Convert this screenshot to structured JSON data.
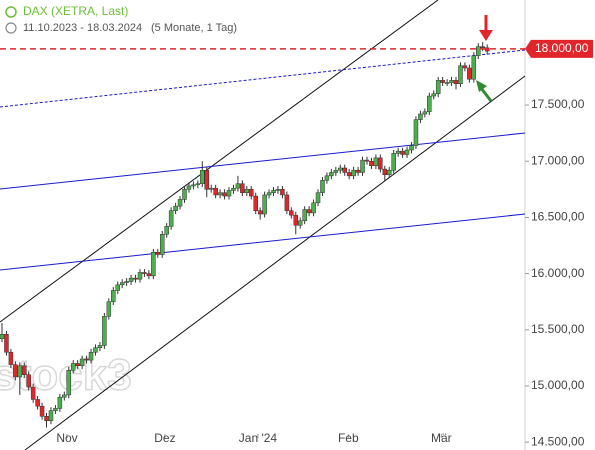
{
  "chart_data": {
    "type": "candlestick",
    "title": "DAX (XETRA, Last)",
    "subtitle": "11.10.2023 - 18.03.2024",
    "period": "(5 Monate, 1 Tag)",
    "watermark": "stock3",
    "up_color": "#4cae4c",
    "down_color": "#e0262b",
    "open": [
      15420,
      15460,
      15300,
      15190,
      15080,
      15180,
      15100,
      14990,
      14880,
      14820,
      14730,
      14690,
      14780,
      14800,
      14900,
      14920,
      15140,
      15200,
      15180,
      15240,
      15230,
      15300,
      15340,
      15360,
      15620,
      15750,
      15850,
      15900,
      15920,
      15930,
      15960,
      15950,
      16010,
      16000,
      15980,
      16190,
      16170,
      16350,
      16420,
      16560,
      16600,
      16660,
      16750,
      16780,
      16790,
      16800,
      16920,
      16750,
      16760,
      16700,
      16720,
      16690,
      16740,
      16760,
      16800,
      16720,
      16750,
      16690,
      16560,
      16530,
      16700,
      16720,
      16740,
      16750,
      16700,
      16560,
      16520,
      16430,
      16470,
      16570,
      16540,
      16630,
      16720,
      16830,
      16870,
      16900,
      16920,
      16940,
      16900,
      16870,
      16920,
      16900,
      17010,
      17000,
      16960,
      17030,
      16930,
      16880,
      16920,
      17070,
      17090,
      17060,
      17100,
      17140,
      17370,
      17420,
      17440,
      17580,
      17600,
      17720,
      17700,
      17700,
      17720,
      17690,
      17850,
      17830,
      17730,
      17940,
      18020,
      18010
    ],
    "high": [
      15560,
      15490,
      15330,
      15220,
      15210,
      15210,
      15130,
      15020,
      14910,
      14850,
      14760,
      14810,
      14830,
      14930,
      14950,
      15170,
      15230,
      15230,
      15270,
      15270,
      15330,
      15370,
      15390,
      15650,
      15780,
      15880,
      15930,
      15950,
      15960,
      15990,
      15990,
      16040,
      16040,
      16030,
      16220,
      16220,
      16380,
      16450,
      16590,
      16630,
      16690,
      16780,
      16810,
      16820,
      16830,
      17000,
      16950,
      16790,
      16790,
      16750,
      16750,
      16770,
      16790,
      16870,
      16830,
      16780,
      16780,
      16720,
      16590,
      16730,
      16750,
      16770,
      16780,
      16780,
      16730,
      16590,
      16550,
      16500,
      16600,
      16600,
      16660,
      16750,
      16860,
      16900,
      16930,
      16950,
      16970,
      16970,
      16930,
      16950,
      16950,
      17040,
      17040,
      17030,
      17060,
      17060,
      16960,
      16950,
      17100,
      17120,
      17120,
      17130,
      17170,
      17400,
      17450,
      17470,
      17610,
      17630,
      17750,
      17750,
      17730,
      17750,
      17750,
      17880,
      17880,
      17860,
      17970,
      18050,
      18060,
      18040
    ],
    "low": [
      15390,
      15270,
      15160,
      15050,
      14920,
      15070,
      14960,
      14850,
      14790,
      14700,
      14630,
      14660,
      14750,
      14770,
      14870,
      14890,
      15110,
      15150,
      15150,
      15200,
      15200,
      15270,
      15310,
      15330,
      15590,
      15720,
      15820,
      15870,
      15890,
      15900,
      15920,
      15920,
      15970,
      15950,
      15950,
      16140,
      16140,
      16320,
      16390,
      16530,
      16570,
      16630,
      16720,
      16750,
      16760,
      16770,
      16680,
      16720,
      16670,
      16670,
      16660,
      16660,
      16710,
      16730,
      16690,
      16690,
      16660,
      16530,
      16480,
      16500,
      16670,
      16690,
      16710,
      16670,
      16530,
      16490,
      16350,
      16400,
      16440,
      16510,
      16510,
      16600,
      16690,
      16800,
      16840,
      16870,
      16890,
      16870,
      16840,
      16840,
      16870,
      16870,
      16970,
      16930,
      16930,
      16900,
      16820,
      16850,
      16890,
      17040,
      17030,
      17030,
      17070,
      17110,
      17340,
      17390,
      17410,
      17550,
      17570,
      17670,
      17670,
      17670,
      17640,
      17660,
      17800,
      17700,
      17700,
      17910,
      17980,
      17950
    ],
    "close": [
      15460,
      15300,
      15190,
      15080,
      15180,
      15100,
      14990,
      14880,
      14820,
      14730,
      14690,
      14780,
      14800,
      14900,
      14920,
      15140,
      15200,
      15180,
      15240,
      15230,
      15300,
      15340,
      15360,
      15620,
      15750,
      15850,
      15900,
      15920,
      15930,
      15960,
      15950,
      16010,
      16000,
      15980,
      16190,
      16170,
      16350,
      16420,
      16560,
      16600,
      16660,
      16750,
      16780,
      16790,
      16800,
      16920,
      16750,
      16760,
      16700,
      16720,
      16690,
      16740,
      16760,
      16800,
      16720,
      16750,
      16690,
      16560,
      16530,
      16700,
      16720,
      16740,
      16750,
      16700,
      16560,
      16520,
      16430,
      16470,
      16570,
      16540,
      16630,
      16720,
      16830,
      16870,
      16900,
      16920,
      16940,
      16900,
      16870,
      16920,
      16900,
      17010,
      17000,
      16960,
      17030,
      16930,
      16880,
      16920,
      17070,
      17090,
      17060,
      17100,
      17140,
      17370,
      17420,
      17440,
      17580,
      17600,
      17720,
      17700,
      17700,
      17720,
      17690,
      17850,
      17830,
      17730,
      17940,
      18020,
      18010,
      17980
    ],
    "xlim": [
      -0.45,
      117.5
    ],
    "xticks": [
      {
        "value": 14.6,
        "label": "Nov"
      },
      {
        "value": 36.6,
        "label": "Dez"
      },
      {
        "value": 57.5,
        "label": "Jan '24"
      },
      {
        "value": 77.8,
        "label": "Feb"
      },
      {
        "value": 98.7,
        "label": "Mär"
      }
    ],
    "ylim": [
      14430,
      18435
    ],
    "yticks": [
      {
        "value": 14500,
        "label": "14.500,00"
      },
      {
        "value": 15000,
        "label": "15.000,00"
      },
      {
        "value": 15500,
        "label": "15.500,00"
      },
      {
        "value": 16000,
        "label": "16.000,00"
      },
      {
        "value": 16500,
        "label": "16.500,00"
      },
      {
        "value": 17000,
        "label": "17.000,00"
      },
      {
        "value": 17500,
        "label": "17.500,00"
      }
    ],
    "price_line": {
      "value": 18000,
      "label": "18.000,00",
      "color": "#e0262b"
    }
  }
}
